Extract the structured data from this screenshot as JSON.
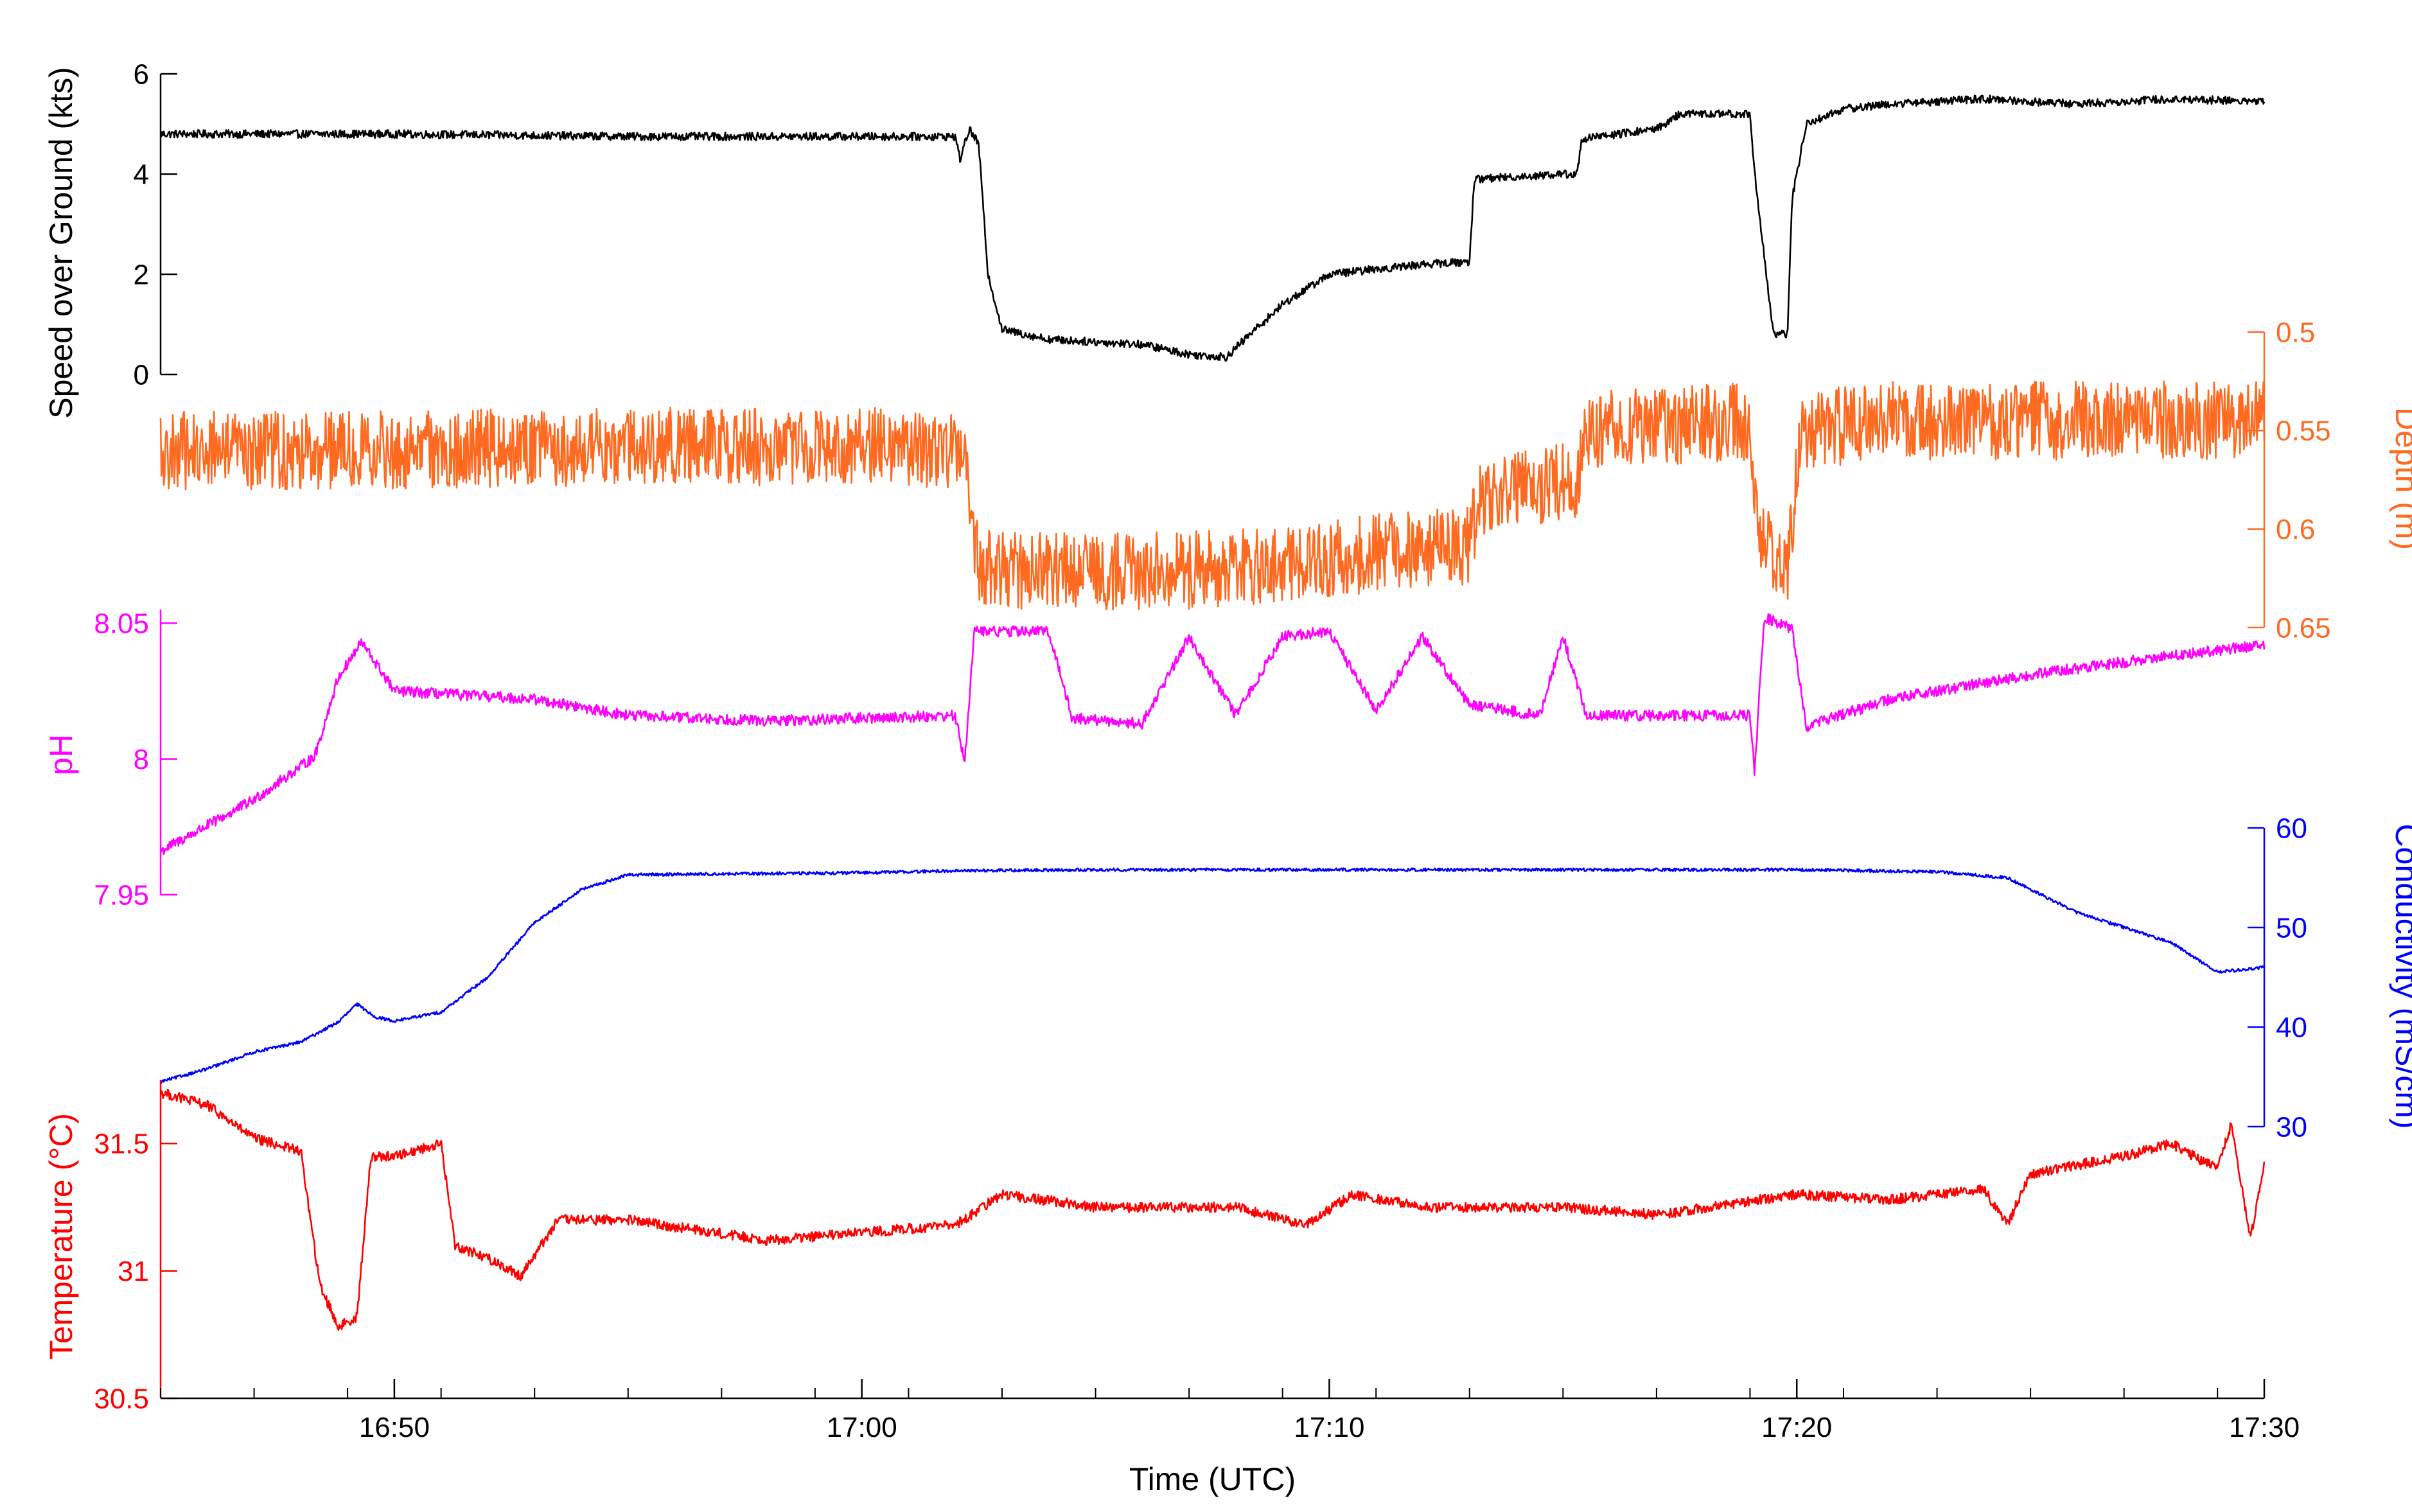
{
  "chart_data": {
    "type": "line",
    "xlabel": "Time (UTC)",
    "x_tick_labels": [
      "16:50",
      "17:00",
      "17:10",
      "17:20",
      "17:30"
    ],
    "x_range": [
      "16:45",
      "17:30"
    ],
    "minor_tick_interval_minutes": 2,
    "series": [
      {
        "key": "sog",
        "ylabel": "Speed over Ground (kts)",
        "color": "#000000",
        "axis_side": "left",
        "ylim": [
          0,
          6
        ],
        "ticks": [
          0,
          2,
          4,
          6
        ],
        "tick_labels": [
          "0",
          "2",
          "4",
          "6"
        ],
        "noise": 0.08,
        "points": [
          [
            "16:45",
            4.8
          ],
          [
            "16:50",
            4.8
          ],
          [
            "16:55",
            4.75
          ],
          [
            "17:00",
            4.75
          ],
          [
            "17:02",
            4.75
          ],
          [
            "17:02.1",
            4.3
          ],
          [
            "17:02.3",
            4.9
          ],
          [
            "17:02.5",
            4.6
          ],
          [
            "17:02.7",
            2.0
          ],
          [
            "17:03",
            0.9
          ],
          [
            "17:04",
            0.7
          ],
          [
            "17:05",
            0.65
          ],
          [
            "17:06",
            0.6
          ],
          [
            "17:07",
            0.4
          ],
          [
            "17:07.8",
            0.35
          ],
          [
            "17:08.3",
            0.8
          ],
          [
            "17:09",
            1.4
          ],
          [
            "17:10",
            2.0
          ],
          [
            "17:11",
            2.1
          ],
          [
            "17:12",
            2.2
          ],
          [
            "17:13",
            2.25
          ],
          [
            "17:13.1",
            3.9
          ],
          [
            "17:15",
            4.0
          ],
          [
            "17:15.3",
            4.0
          ],
          [
            "17:15.4",
            4.7
          ],
          [
            "17:17",
            4.9
          ],
          [
            "17:17.5",
            5.2
          ],
          [
            "17:19",
            5.2
          ],
          [
            "17:19.1",
            4.0
          ],
          [
            "17:19.5",
            0.8
          ],
          [
            "17:19.8",
            0.8
          ],
          [
            "17:19.9",
            3.5
          ],
          [
            "17:20.2",
            5.0
          ],
          [
            "17:21",
            5.3
          ],
          [
            "17:22",
            5.4
          ],
          [
            "17:24",
            5.5
          ],
          [
            "17:26",
            5.4
          ],
          [
            "17:28",
            5.5
          ],
          [
            "17:30",
            5.45
          ]
        ]
      },
      {
        "key": "depth",
        "ylabel": "Depth (m)",
        "color": "#ff6a21",
        "axis_side": "right",
        "inverted": true,
        "ylim": [
          0.5,
          0.65
        ],
        "ticks": [
          0.5,
          0.55,
          0.6,
          0.65
        ],
        "tick_labels": [
          "0.5",
          "0.55",
          "0.6",
          "0.65"
        ],
        "noise": 0.02,
        "points": [
          [
            "16:45",
            0.56
          ],
          [
            "16:50",
            0.56
          ],
          [
            "16:55",
            0.558
          ],
          [
            "17:00",
            0.558
          ],
          [
            "17:02.2",
            0.56
          ],
          [
            "17:02.5",
            0.62
          ],
          [
            "17:05",
            0.622
          ],
          [
            "17:08",
            0.62
          ],
          [
            "17:10",
            0.615
          ],
          [
            "17:12",
            0.61
          ],
          [
            "17:13",
            0.608
          ],
          [
            "17:13.2",
            0.585
          ],
          [
            "17:15.3",
            0.575
          ],
          [
            "17:15.5",
            0.55
          ],
          [
            "17:19",
            0.545
          ],
          [
            "17:19.2",
            0.605
          ],
          [
            "17:19.8",
            0.62
          ],
          [
            "17:20.1",
            0.55
          ],
          [
            "17:22",
            0.545
          ],
          [
            "17:26",
            0.545
          ],
          [
            "17:30",
            0.545
          ]
        ]
      },
      {
        "key": "ph",
        "ylabel": "pH",
        "color": "#ff00ff",
        "axis_side": "left",
        "ylim": [
          7.95,
          8.055
        ],
        "ticks": [
          7.95,
          8,
          8.05
        ],
        "tick_labels": [
          "7.95",
          "8",
          "8.05"
        ],
        "noise": 0.002,
        "points": [
          [
            "16:45",
            7.966
          ],
          [
            "16:47",
            7.985
          ],
          [
            "16:48.3",
            8.001
          ],
          [
            "16:48.8",
            8.03
          ],
          [
            "16:49.3",
            8.043
          ],
          [
            "16:50",
            8.025
          ],
          [
            "16:53",
            8.022
          ],
          [
            "16:55",
            8.016
          ],
          [
            "16:58",
            8.014
          ],
          [
            "17:00",
            8.015
          ],
          [
            "17:02",
            8.016
          ],
          [
            "17:02.2",
            7.998
          ],
          [
            "17:02.4",
            8.047
          ],
          [
            "17:04",
            8.047
          ],
          [
            "17:04.5",
            8.015
          ],
          [
            "17:06",
            8.013
          ],
          [
            "17:07",
            8.045
          ],
          [
            "17:08",
            8.016
          ],
          [
            "17:09",
            8.045
          ],
          [
            "17:10",
            8.047
          ],
          [
            "17:11",
            8.018
          ],
          [
            "17:12",
            8.045
          ],
          [
            "17:13",
            8.02
          ],
          [
            "17:14.5",
            8.016
          ],
          [
            "17:15",
            8.045
          ],
          [
            "17:15.5",
            8.016
          ],
          [
            "17:19",
            8.016
          ],
          [
            "17:19.1",
            7.995
          ],
          [
            "17:19.3",
            8.052
          ],
          [
            "17:19.9",
            8.048
          ],
          [
            "17:20.2",
            8.012
          ],
          [
            "17:22",
            8.022
          ],
          [
            "17:25",
            8.031
          ],
          [
            "17:28",
            8.038
          ],
          [
            "17:30",
            8.042
          ]
        ]
      },
      {
        "key": "cond",
        "ylabel": "Conductivity (mS/cm)",
        "color": "#0000ff",
        "axis_side": "right",
        "ylim": [
          30,
          60
        ],
        "ticks": [
          30,
          40,
          50,
          60
        ],
        "tick_labels": [
          "30",
          "40",
          "50",
          "60"
        ],
        "noise": 0.15,
        "points": [
          [
            "16:45",
            34.5
          ],
          [
            "16:46",
            35.8
          ],
          [
            "16:47",
            37.5
          ],
          [
            "16:48",
            38.5
          ],
          [
            "16:48.8",
            40.5
          ],
          [
            "16:49.2",
            42.3
          ],
          [
            "16:49.6",
            41.0
          ],
          [
            "16:50",
            40.6
          ],
          [
            "16:51",
            41.5
          ],
          [
            "16:52",
            45.0
          ],
          [
            "16:53",
            50.5
          ],
          [
            "16:54",
            53.8
          ],
          [
            "16:55",
            55.3
          ],
          [
            "17:00",
            55.5
          ],
          [
            "17:02",
            55.7
          ],
          [
            "17:05",
            55.8
          ],
          [
            "17:10",
            55.8
          ],
          [
            "17:15",
            55.8
          ],
          [
            "17:20",
            55.8
          ],
          [
            "17:23",
            55.6
          ],
          [
            "17:24.5",
            55.0
          ],
          [
            "17:26",
            51.5
          ],
          [
            "17:27",
            50.0
          ],
          [
            "17:28",
            48.5
          ],
          [
            "17:29",
            45.5
          ],
          [
            "17:30",
            46.0
          ]
        ]
      },
      {
        "key": "temp",
        "ylabel": "Temperature (°C)",
        "color": "#ff0000",
        "axis_side": "left",
        "ylim": [
          30.5,
          31.75
        ],
        "ticks": [
          30.5,
          31,
          31.5
        ],
        "tick_labels": [
          "30.5",
          "31",
          "31.5"
        ],
        "noise": 0.02,
        "points": [
          [
            "16:45",
            31.7
          ],
          [
            "16:46",
            31.65
          ],
          [
            "16:47",
            31.52
          ],
          [
            "16:48",
            31.47
          ],
          [
            "16:48.4",
            30.95
          ],
          [
            "16:48.8",
            30.78
          ],
          [
            "16:49.2",
            30.82
          ],
          [
            "16:49.5",
            31.45
          ],
          [
            "16:50",
            31.45
          ],
          [
            "16:51",
            31.5
          ],
          [
            "16:51.3",
            31.1
          ],
          [
            "16:52",
            31.05
          ],
          [
            "16:52.7",
            30.98
          ],
          [
            "16:53.5",
            31.2
          ],
          [
            "16:55",
            31.2
          ],
          [
            "16:58",
            31.12
          ],
          [
            "17:00",
            31.15
          ],
          [
            "17:02",
            31.18
          ],
          [
            "17:03",
            31.3
          ],
          [
            "17:05",
            31.25
          ],
          [
            "17:08",
            31.25
          ],
          [
            "17:09.5",
            31.18
          ],
          [
            "17:10.5",
            31.3
          ],
          [
            "17:12",
            31.25
          ],
          [
            "17:15",
            31.25
          ],
          [
            "17:17",
            31.22
          ],
          [
            "17:20",
            31.3
          ],
          [
            "17:22",
            31.28
          ],
          [
            "17:24",
            31.32
          ],
          [
            "17:24.5",
            31.18
          ],
          [
            "17:25",
            31.38
          ],
          [
            "17:27",
            31.45
          ],
          [
            "17:28",
            31.5
          ],
          [
            "17:29",
            31.4
          ],
          [
            "17:29.3",
            31.58
          ],
          [
            "17:29.7",
            31.12
          ],
          [
            "17:30",
            31.42
          ]
        ]
      }
    ]
  }
}
